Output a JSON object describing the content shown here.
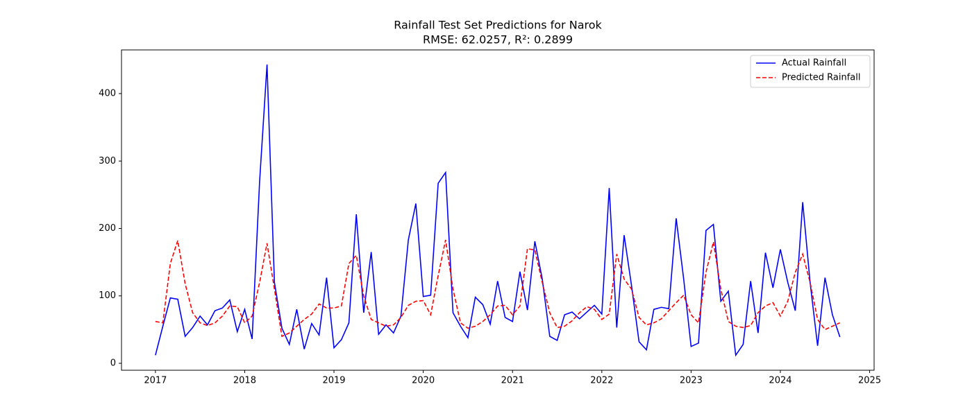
{
  "chart_data": {
    "type": "line",
    "title": "Rainfall Test Set Predictions for Narok",
    "subtitle": "RMSE: 62.0257, R²: 0.2899",
    "x": [
      2017,
      2017.083,
      2017.167,
      2017.25,
      2017.333,
      2017.417,
      2017.5,
      2017.583,
      2017.667,
      2017.75,
      2017.833,
      2017.917,
      2018,
      2018.083,
      2018.167,
      2018.25,
      2018.333,
      2018.417,
      2018.5,
      2018.583,
      2018.667,
      2018.75,
      2018.833,
      2018.917,
      2019,
      2019.083,
      2019.167,
      2019.25,
      2019.333,
      2019.417,
      2019.5,
      2019.583,
      2019.667,
      2019.75,
      2019.833,
      2019.917,
      2020,
      2020.083,
      2020.167,
      2020.25,
      2020.333,
      2020.417,
      2020.5,
      2020.583,
      2020.667,
      2020.75,
      2020.833,
      2020.917,
      2021,
      2021.083,
      2021.167,
      2021.25,
      2021.333,
      2021.417,
      2021.5,
      2021.583,
      2021.667,
      2021.75,
      2021.833,
      2021.917,
      2022,
      2022.083,
      2022.167,
      2022.25,
      2022.333,
      2022.417,
      2022.5,
      2022.583,
      2022.667,
      2022.75,
      2022.833,
      2022.917,
      2023,
      2023.083,
      2023.167,
      2023.25,
      2023.333,
      2023.417,
      2023.5,
      2023.583,
      2023.667,
      2023.75,
      2023.833,
      2023.917,
      2024,
      2024.083,
      2024.167,
      2024.25,
      2024.333,
      2024.417,
      2024.5,
      2024.583,
      2024.667
    ],
    "series": [
      {
        "name": "Actual Rainfall",
        "color": "#0000ff",
        "linestyle": "solid",
        "values": [
          12,
          55,
          97,
          95,
          40,
          53,
          70,
          57,
          78,
          82,
          94,
          47,
          80,
          36,
          270,
          443,
          120,
          52,
          28,
          80,
          21,
          59,
          42,
          127,
          23,
          35,
          60,
          221,
          75,
          165,
          43,
          57,
          45,
          70,
          183,
          237,
          99,
          101,
          267,
          283,
          75,
          55,
          38,
          98,
          87,
          58,
          122,
          68,
          62,
          136,
          79,
          181,
          125,
          40,
          34,
          72,
          76,
          66,
          76,
          86,
          73,
          260,
          53,
          190,
          115,
          32,
          20,
          80,
          83,
          81,
          215,
          125,
          25,
          30,
          197,
          206,
          92,
          107,
          12,
          28,
          122,
          45,
          164,
          112,
          169,
          120,
          78,
          239,
          120,
          26,
          127,
          72,
          39
        ]
      },
      {
        "name": "Predicted Rainfall",
        "color": "#ff0000",
        "linestyle": "dashed",
        "values": [
          62,
          60,
          148,
          182,
          118,
          75,
          60,
          56,
          60,
          70,
          85,
          84,
          60,
          70,
          120,
          178,
          110,
          40,
          45,
          55,
          65,
          73,
          88,
          82,
          82,
          85,
          148,
          160,
          100,
          65,
          60,
          55,
          57,
          68,
          86,
          92,
          93,
          72,
          130,
          183,
          110,
          60,
          52,
          55,
          62,
          72,
          85,
          86,
          72,
          85,
          170,
          168,
          120,
          75,
          53,
          55,
          63,
          75,
          84,
          80,
          65,
          73,
          162,
          125,
          110,
          68,
          57,
          60,
          66,
          78,
          90,
          101,
          72,
          60,
          135,
          180,
          110,
          62,
          55,
          53,
          56,
          75,
          85,
          90,
          70,
          92,
          135,
          162,
          120,
          65,
          50,
          55,
          60
        ]
      }
    ],
    "xlim": [
      2016.62,
      2025.05
    ],
    "xticks": [
      2017,
      2018,
      2019,
      2020,
      2021,
      2022,
      2023,
      2024,
      2025
    ],
    "ylim": [
      -10.3,
      464.8
    ],
    "yticks": [
      0,
      100,
      200,
      300,
      400
    ],
    "grid": false,
    "legend": "upper right"
  }
}
